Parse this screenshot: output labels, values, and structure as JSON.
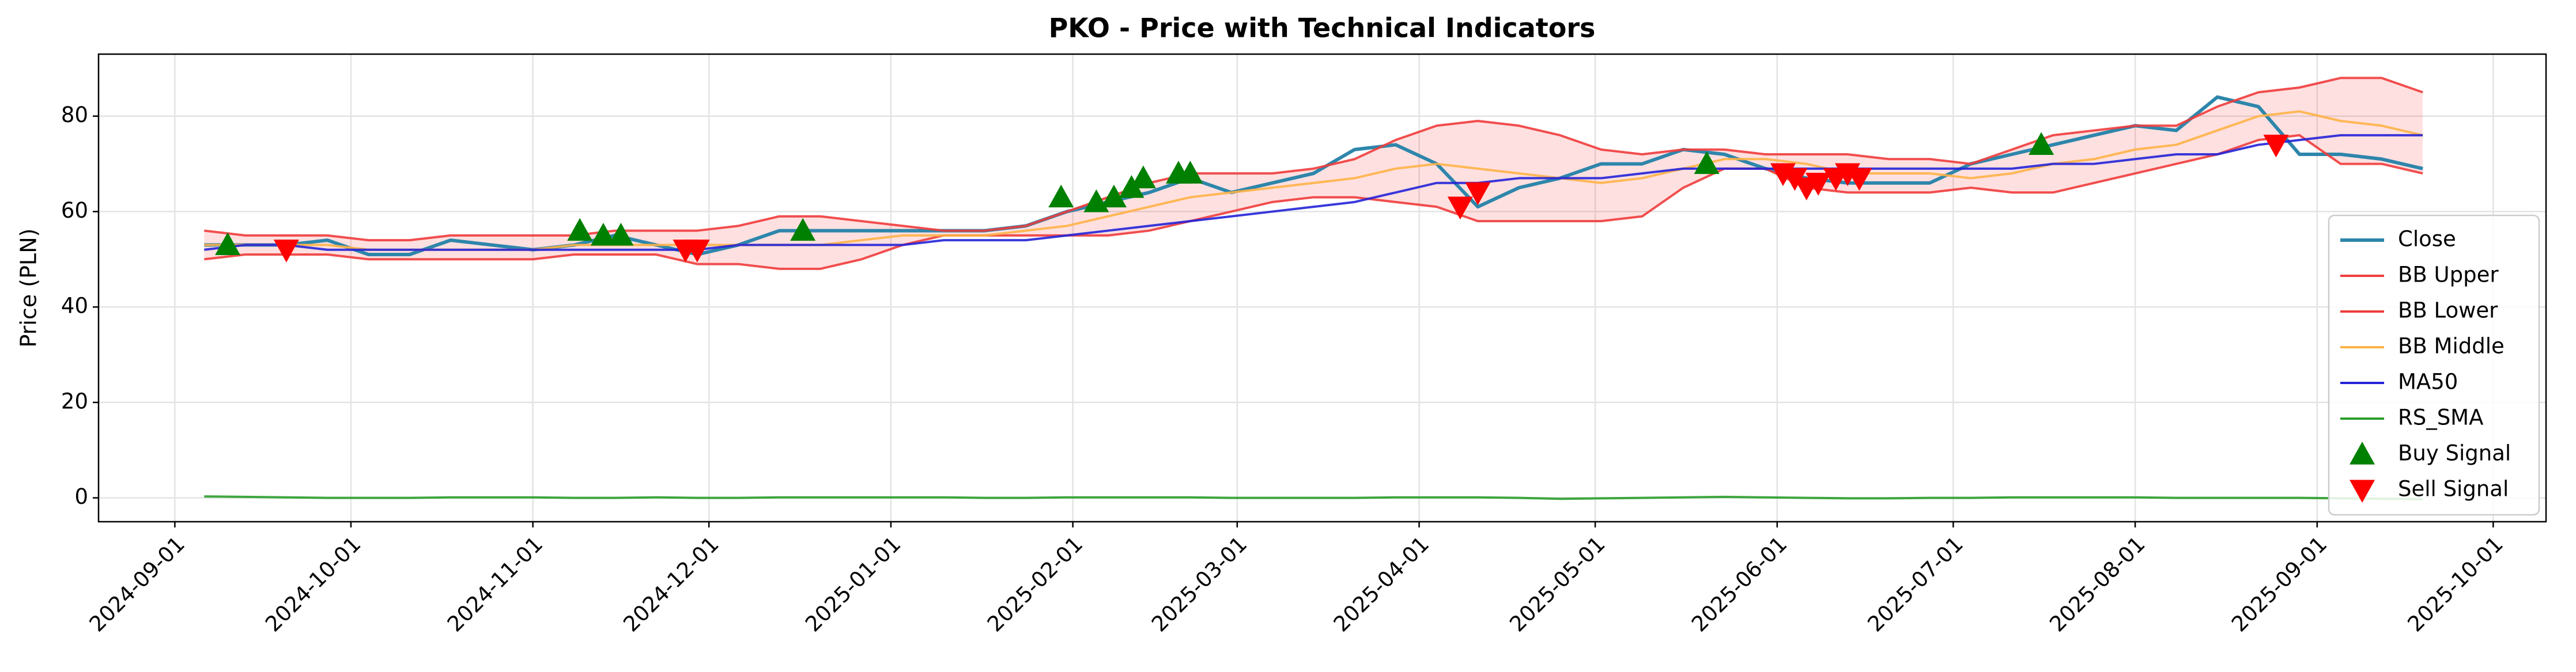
{
  "chart_data": {
    "type": "line",
    "title": "PKO - Price with Technical Indicators",
    "y_label": "Price (PLN)",
    "x": [
      "2024-09-06",
      "2024-09-13",
      "2024-09-20",
      "2024-09-27",
      "2024-10-04",
      "2024-10-11",
      "2024-10-18",
      "2024-10-25",
      "2024-11-01",
      "2024-11-08",
      "2024-11-15",
      "2024-11-22",
      "2024-11-29",
      "2024-12-06",
      "2024-12-13",
      "2024-12-20",
      "2024-12-27",
      "2025-01-03",
      "2025-01-10",
      "2025-01-17",
      "2025-01-24",
      "2025-01-31",
      "2025-02-07",
      "2025-02-14",
      "2025-02-21",
      "2025-02-28",
      "2025-03-07",
      "2025-03-14",
      "2025-03-21",
      "2025-03-28",
      "2025-04-04",
      "2025-04-11",
      "2025-04-18",
      "2025-04-25",
      "2025-05-02",
      "2025-05-09",
      "2025-05-16",
      "2025-05-23",
      "2025-05-30",
      "2025-06-06",
      "2025-06-13",
      "2025-06-20",
      "2025-06-27",
      "2025-07-04",
      "2025-07-11",
      "2025-07-18",
      "2025-07-25",
      "2025-08-01",
      "2025-08-08",
      "2025-08-15",
      "2025-08-22",
      "2025-08-29",
      "2025-09-05",
      "2025-09-12",
      "2025-09-19"
    ],
    "series": [
      {
        "name": "Close",
        "color": "#2e86ab",
        "width": 6,
        "values": [
          53,
          53,
          53,
          54,
          51,
          51,
          54,
          53,
          52,
          53,
          55,
          53,
          51,
          53,
          56,
          56,
          56,
          56,
          56,
          56,
          57,
          60,
          62,
          64,
          67,
          64,
          66,
          68,
          73,
          74,
          70,
          61,
          65,
          67,
          70,
          70,
          73,
          72,
          69,
          67,
          66,
          66,
          66,
          70,
          72,
          74,
          76,
          78,
          77,
          84,
          82,
          72,
          72,
          71,
          69
        ]
      },
      {
        "name": "BB Upper",
        "color": "#f03c3c",
        "width": 4,
        "values": [
          56,
          55,
          55,
          55,
          54,
          54,
          55,
          55,
          55,
          55,
          56,
          56,
          56,
          57,
          59,
          59,
          58,
          57,
          56,
          56,
          57,
          60,
          63,
          66,
          68,
          68,
          68,
          69,
          71,
          75,
          78,
          79,
          78,
          76,
          73,
          72,
          73,
          73,
          72,
          72,
          72,
          71,
          71,
          70,
          73,
          76,
          77,
          78,
          78,
          82,
          85,
          86,
          88,
          88,
          85
        ]
      },
      {
        "name": "BB Lower",
        "color": "#f03c3c",
        "width": 4,
        "values": [
          50,
          51,
          51,
          51,
          50,
          50,
          50,
          50,
          50,
          51,
          51,
          51,
          49,
          49,
          48,
          48,
          50,
          53,
          55,
          55,
          55,
          55,
          55,
          56,
          58,
          60,
          62,
          63,
          63,
          62,
          61,
          58,
          58,
          58,
          58,
          59,
          65,
          69,
          69,
          65,
          64,
          64,
          64,
          65,
          64,
          64,
          66,
          68,
          70,
          72,
          75,
          76,
          70,
          70,
          68
        ]
      },
      {
        "name": "BB Middle",
        "color": "#ffb347",
        "width": 4,
        "values": [
          53,
          53,
          53,
          53,
          52,
          52,
          52,
          52,
          52,
          53,
          53,
          53,
          53,
          53,
          53,
          53,
          54,
          55,
          55,
          55,
          56,
          57,
          59,
          61,
          63,
          64,
          65,
          66,
          67,
          69,
          70,
          69,
          68,
          67,
          66,
          67,
          69,
          71,
          71,
          70,
          68,
          68,
          68,
          67,
          68,
          70,
          71,
          73,
          74,
          77,
          80,
          81,
          79,
          78,
          76
        ]
      },
      {
        "name": "MA50",
        "color": "#2424d8",
        "width": 4,
        "values": [
          52,
          53,
          53,
          52,
          52,
          52,
          52,
          52,
          52,
          52,
          52,
          52,
          52,
          53,
          53,
          53,
          53,
          53,
          54,
          54,
          54,
          55,
          56,
          57,
          58,
          59,
          60,
          61,
          62,
          64,
          66,
          66,
          67,
          67,
          67,
          68,
          69,
          69,
          69,
          69,
          69,
          69,
          69,
          69,
          69,
          70,
          70,
          71,
          72,
          72,
          74,
          75,
          76,
          76,
          76
        ]
      },
      {
        "name": "RS_SMA",
        "color": "#2a9d2a",
        "width": 4,
        "values": [
          0.3,
          0.2,
          0.1,
          0,
          0,
          0,
          0.1,
          0.1,
          0.1,
          0,
          0,
          0.1,
          0,
          0,
          0.1,
          0.1,
          0.1,
          0.1,
          0.1,
          0,
          0,
          0.1,
          0.1,
          0.1,
          0.1,
          0,
          0,
          0,
          0,
          0.1,
          0.1,
          0.1,
          0,
          -0.2,
          -0.1,
          0,
          0.1,
          0.2,
          0.1,
          0,
          -0.1,
          -0.1,
          0,
          0,
          0.1,
          0.1,
          0.1,
          0.1,
          0,
          0,
          0,
          0,
          -0.1,
          -0.2,
          -0.3
        ]
      },
      {
        "name": "Buy Signal",
        "color": "#008000",
        "marker": "up",
        "x": [
          "2024-09-10",
          "2024-11-09",
          "2024-11-13",
          "2024-11-16",
          "2024-12-17",
          "2025-01-30",
          "2025-02-05",
          "2025-02-08",
          "2025-02-11",
          "2025-02-13",
          "2025-02-19",
          "2025-02-21",
          "2025-05-20",
          "2025-07-16"
        ],
        "values": [
          53,
          56,
          55,
          55,
          56,
          63,
          62,
          63,
          65,
          67,
          68,
          68,
          70,
          74
        ]
      },
      {
        "name": "Sell Signal",
        "color": "#ff0000",
        "marker": "down",
        "x": [
          "2024-09-20",
          "2024-11-27",
          "2024-11-29",
          "2025-04-08",
          "2025-04-11",
          "2025-06-02",
          "2025-06-04",
          "2025-06-06",
          "2025-06-08",
          "2025-06-11",
          "2025-06-13",
          "2025-06-15",
          "2025-08-25"
        ],
        "values": [
          52,
          52,
          52,
          61,
          64,
          68,
          67,
          65,
          66,
          67,
          68,
          67,
          74
        ]
      }
    ],
    "fill_between": [
      1,
      2
    ],
    "fill_color": "rgba(255,0,0,0.12)",
    "xlim": [
      "2024-08-19",
      "2025-10-10"
    ],
    "xticks": [
      "2024-09-01",
      "2024-10-01",
      "2024-11-01",
      "2024-12-01",
      "2025-01-01",
      "2025-02-01",
      "2025-03-01",
      "2025-04-01",
      "2025-05-01",
      "2025-06-01",
      "2025-07-01",
      "2025-08-01",
      "2025-09-01",
      "2025-10-01"
    ],
    "ylim": [
      -5,
      93
    ],
    "yticks": [
      0,
      20,
      40,
      60,
      80
    ],
    "grid": true,
    "legend": "lower right"
  }
}
